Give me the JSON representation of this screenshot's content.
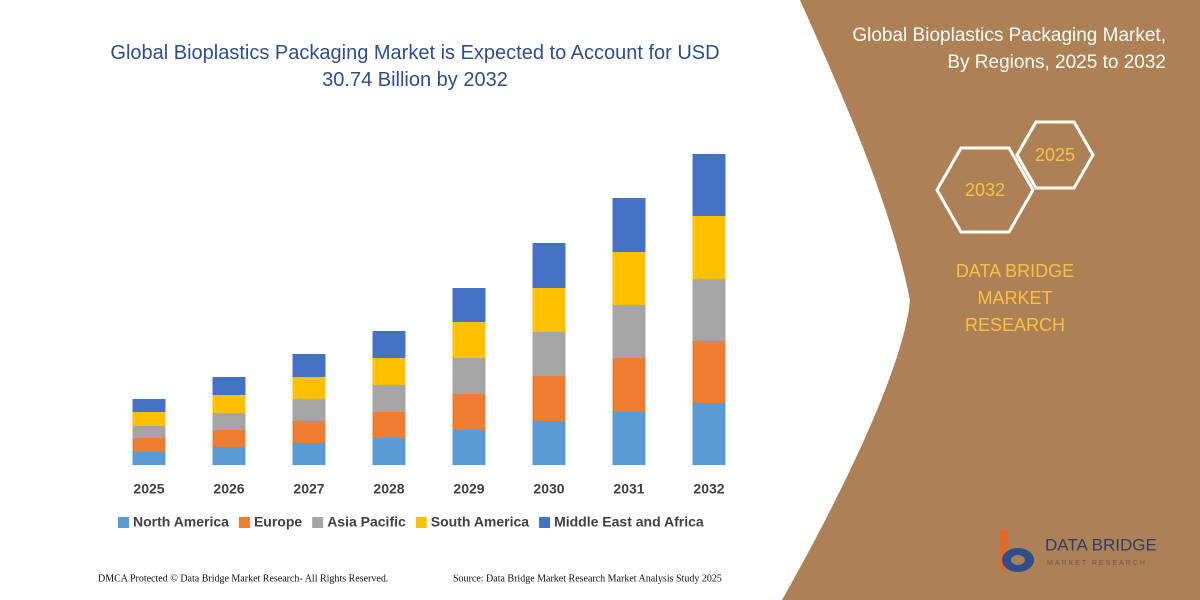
{
  "chart_data": {
    "type": "bar",
    "stacked": true,
    "title": "Global Bioplastics Packaging Market is Expected to Account for USD 30.74 Billion by 2032",
    "categories": [
      "2025",
      "2026",
      "2027",
      "2028",
      "2029",
      "2030",
      "2031",
      "2032"
    ],
    "series": [
      {
        "name": "North America",
        "color": "#5b9bd5",
        "values": [
          13,
          18,
          22,
          27,
          35,
          44,
          53,
          62
        ]
      },
      {
        "name": "Europe",
        "color": "#ed7d31",
        "values": [
          14,
          17,
          22,
          26,
          36,
          45,
          54,
          62
        ]
      },
      {
        "name": "Asia Pacific",
        "color": "#a5a5a5",
        "values": [
          12,
          17,
          22,
          27,
          36,
          44,
          53,
          62
        ]
      },
      {
        "name": "South America",
        "color": "#ffc000",
        "values": [
          14,
          18,
          22,
          27,
          36,
          44,
          53,
          63
        ]
      },
      {
        "name": "Middle East and Africa",
        "color": "#4472c4",
        "values": [
          13,
          18,
          23,
          27,
          34,
          45,
          54,
          62
        ]
      }
    ],
    "ylim": [
      0,
      320
    ]
  },
  "panel": {
    "title": "Global Bioplastics Packaging Market, By Regions, 2025 to 2032",
    "hexagons": [
      "2032",
      "2025"
    ],
    "brand": "DATA BRIDGE MARKET RESEARCH"
  },
  "logo": {
    "name": "DATA BRIDGE",
    "tagline": "MARKET RESEARCH"
  },
  "footer": {
    "left": "DMCA Protected © Data Bridge Market Research-  All Rights Reserved.",
    "right": "Source: Data Bridge Market Research  Market Analysis Study 2025"
  }
}
